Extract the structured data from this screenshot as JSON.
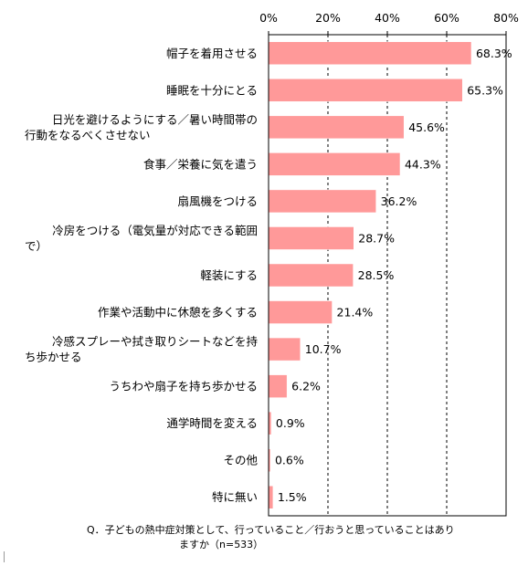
{
  "chart_data": {
    "type": "bar",
    "orientation": "horizontal",
    "categories": [
      [
        "帽子を着用させる"
      ],
      [
        "睡眠を十分にとる"
      ],
      [
        "日光を避けるようにする／暑い時間帯の",
        "行動をなるべくさせない"
      ],
      [
        "食事／栄養に気を遣う"
      ],
      [
        "扇風機をつける"
      ],
      [
        "冷房をつける（電気量が対応できる範囲",
        "で）"
      ],
      [
        "軽装にする"
      ],
      [
        "作業や活動中に休憩を多くする"
      ],
      [
        "冷感スプレーや拭き取りシートなどを持",
        "ち歩かせる"
      ],
      [
        "うちわや扇子を持ち歩かせる"
      ],
      [
        "通学時間を変える"
      ],
      [
        "その他"
      ],
      [
        "特に無い"
      ]
    ],
    "values": [
      68.3,
      65.3,
      45.6,
      44.3,
      36.2,
      28.7,
      28.5,
      21.4,
      10.7,
      6.2,
      0.9,
      0.6,
      1.5
    ],
    "value_labels": [
      "68.3%",
      "65.3%",
      "45.6%",
      "44.3%",
      "36.2%",
      "28.7%",
      "28.5%",
      "21.4%",
      "10.7%",
      "6.2%",
      "0.9%",
      "0.6%",
      "1.5%"
    ],
    "xlim": [
      0,
      80
    ],
    "x_ticks": [
      0,
      20,
      40,
      60,
      80
    ],
    "x_tick_labels": [
      "0%",
      "20%",
      "40%",
      "60%",
      "80%"
    ],
    "x_axis_position": "top",
    "grid": "vertical dashed",
    "bar_color": "#ff9999",
    "bar_edge_color": "#ffffff",
    "note": [
      "Q．子どもの熱中症対策として、行っていること／行おうと思っていることはあり",
      "ますか（n=533）"
    ]
  }
}
